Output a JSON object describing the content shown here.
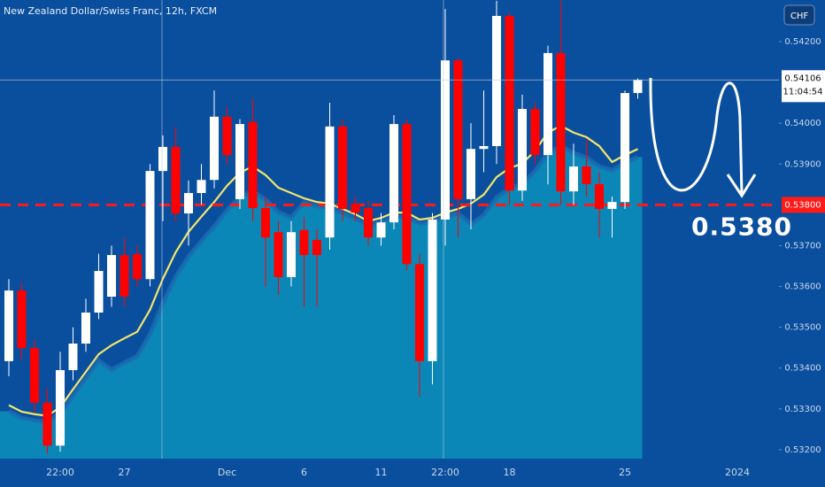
{
  "chart_data": {
    "type": "candlestick",
    "title": "New Zealand Dollar/Swiss Franc, 12h, FXCM",
    "currency": "CHF",
    "categories": [
      null,
      null,
      null,
      null,
      "22:00",
      null,
      null,
      null,
      null,
      "27",
      null,
      null,
      null,
      null,
      null,
      null,
      null,
      "Dec",
      null,
      null,
      null,
      null,
      null,
      "6",
      null,
      null,
      null,
      null,
      null,
      "11",
      null,
      null,
      null,
      null,
      "22:00",
      null,
      null,
      null,
      null,
      "18",
      null,
      null,
      null,
      null,
      null,
      null,
      null,
      null,
      "25",
      null
    ],
    "future_label": "2024",
    "open": [
      0.53417,
      0.5359,
      0.53449,
      0.53315,
      0.5321,
      0.53395,
      0.5346,
      0.53536,
      0.53575,
      0.53677,
      0.53679,
      0.53618,
      0.53883,
      0.53942,
      0.53779,
      0.53829,
      0.53861,
      0.54016,
      0.53814,
      0.54003,
      0.53792,
      0.53733,
      0.53623,
      0.53738,
      0.53714,
      0.5372,
      0.53992,
      0.53803,
      0.53792,
      0.5372,
      0.53757,
      0.53998,
      0.53655,
      0.53417,
      0.53764,
      0.54154,
      0.53814,
      0.53937,
      0.53944,
      0.54263,
      0.53835,
      0.54035,
      0.53922,
      0.54172,
      0.53833,
      0.53894,
      0.53851,
      0.5379,
      0.53807,
      0.54074
    ],
    "high": [
      0.53618,
      0.5361,
      0.5347,
      0.5335,
      0.5344,
      0.535,
      0.5357,
      0.5368,
      0.537,
      0.5372,
      0.537,
      0.539,
      0.5397,
      0.5399,
      0.5386,
      0.539,
      0.5408,
      0.5404,
      0.5401,
      0.5406,
      0.5382,
      0.5376,
      0.5376,
      0.5377,
      0.5374,
      0.5405,
      0.5401,
      0.5382,
      0.5381,
      0.5378,
      0.5402,
      0.5401,
      0.5368,
      0.5378,
      0.5428,
      0.5416,
      0.54,
      0.5408,
      0.543,
      0.5427,
      0.5407,
      0.5405,
      0.5419,
      0.543,
      0.5395,
      0.5396,
      0.5388,
      0.5382,
      0.5408,
      0.5411
    ],
    "low": [
      0.5338,
      0.5342,
      0.5329,
      0.5319,
      0.53195,
      0.5337,
      0.5344,
      0.5352,
      0.5355,
      0.5355,
      0.536,
      0.536,
      0.5376,
      0.5376,
      0.537,
      0.538,
      0.5384,
      0.539,
      0.5379,
      0.5376,
      0.536,
      0.5358,
      0.536,
      0.5355,
      0.5355,
      0.5369,
      0.5376,
      0.5376,
      0.537,
      0.537,
      0.5374,
      0.5364,
      0.5333,
      0.5336,
      0.537,
      0.5372,
      0.5374,
      0.5388,
      0.539,
      0.538,
      0.5381,
      0.539,
      0.5385,
      0.538,
      0.538,
      0.5382,
      0.5372,
      0.5372,
      0.5379,
      0.5406
    ],
    "close": [
      0.5359,
      0.53449,
      0.53315,
      0.5321,
      0.53395,
      0.5346,
      0.53536,
      0.53638,
      0.53677,
      0.53575,
      0.53618,
      0.53883,
      0.53942,
      0.53779,
      0.53829,
      0.53861,
      0.54016,
      0.53922,
      0.53998,
      0.53792,
      0.5372,
      0.53623,
      0.53733,
      0.53677,
      0.53677,
      0.53992,
      0.5379,
      0.53781,
      0.5372,
      0.53757,
      0.53998,
      0.53655,
      0.53417,
      0.53764,
      0.54154,
      0.53814,
      0.53937,
      0.53944,
      0.54263,
      0.53835,
      0.54035,
      0.53922,
      0.54172,
      0.53833,
      0.53894,
      0.53851,
      0.5379,
      0.53807,
      0.54074,
      0.54106
    ],
    "up_color": "#ffffff",
    "down_color": "#ff0000",
    "ma": {
      "color": "#f3e66b",
      "values": [
        0.53309,
        0.53293,
        0.53287,
        0.53283,
        0.53304,
        0.53348,
        0.53391,
        0.53434,
        0.53456,
        0.53473,
        0.53489,
        0.53543,
        0.53619,
        0.53684,
        0.53734,
        0.53771,
        0.53807,
        0.53847,
        0.53879,
        0.53894,
        0.53873,
        0.53842,
        0.53829,
        0.53816,
        0.53807,
        0.53803,
        0.5379,
        0.53777,
        0.5376,
        0.53768,
        0.53781,
        0.53781,
        0.53764,
        0.53768,
        0.53781,
        0.5379,
        0.53803,
        0.53825,
        0.53868,
        0.5389,
        0.53901,
        0.53933,
        0.53977,
        0.53994,
        0.53977,
        0.53966,
        0.53944,
        0.53905,
        0.53922,
        0.53937
      ]
    },
    "area": {
      "color": "#0a87b6",
      "values": [
        0.53294,
        0.53278,
        0.53272,
        0.53268,
        0.53289,
        0.53333,
        0.53376,
        0.53419,
        0.53396,
        0.53413,
        0.53429,
        0.53483,
        0.53559,
        0.53624,
        0.53674,
        0.53711,
        0.53747,
        0.53787,
        0.53819,
        0.53834,
        0.53813,
        0.53782,
        0.53769,
        0.53806,
        0.53797,
        0.53793,
        0.5378,
        0.53767,
        0.5375,
        0.53758,
        0.53771,
        0.53771,
        0.53754,
        0.53758,
        0.53771,
        0.5378,
        0.53753,
        0.53775,
        0.53818,
        0.5384,
        0.53851,
        0.53883,
        0.53927,
        0.53944,
        0.53927,
        0.53916,
        0.53894,
        0.53885,
        0.53902,
        0.53917
      ]
    },
    "ylim": [
      0.53178,
      0.54302
    ],
    "yticks": [
      {
        "value": 0.532,
        "label": "0.53200"
      },
      {
        "value": 0.533,
        "label": "0.53300"
      },
      {
        "value": 0.534,
        "label": "0.53400"
      },
      {
        "value": 0.535,
        "label": "0.53500"
      },
      {
        "value": 0.536,
        "label": "0.53600"
      },
      {
        "value": 0.537,
        "label": "0.53700"
      },
      {
        "value": 0.539,
        "label": "0.53900"
      },
      {
        "value": 0.54,
        "label": "0.54000"
      },
      {
        "value": 0.542,
        "label": "0.54200"
      }
    ],
    "last_price": 0.54106,
    "countdown": "11:04:54",
    "level": {
      "value": 0.538,
      "label": "0.53800",
      "color": "#ff1a1a"
    },
    "annotation": {
      "value": 0.538,
      "label": "0.5380"
    }
  }
}
